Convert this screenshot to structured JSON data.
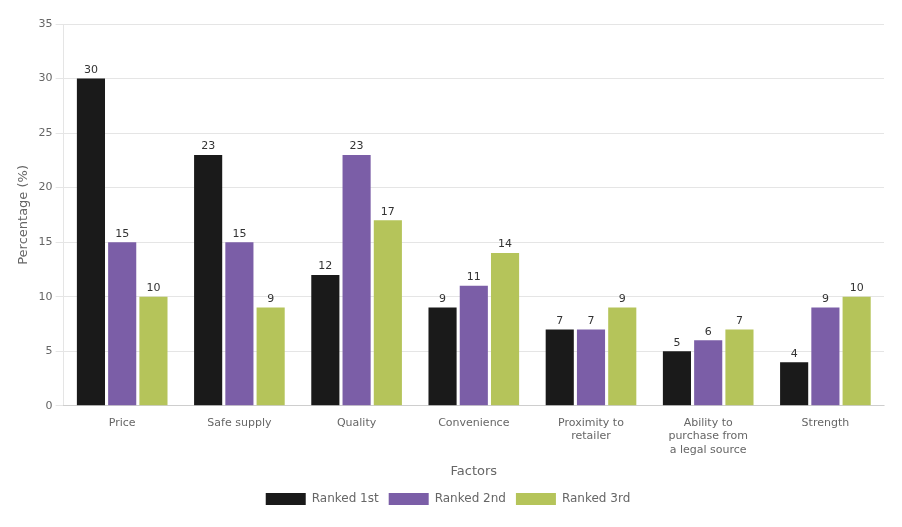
{
  "chart_data": {
    "type": "bar",
    "categories": [
      "Price",
      "Safe supply",
      "Quality",
      "Convenience",
      "Proximity to\nretailer",
      "Ability to\npurchase from\na legal source",
      "Strength"
    ],
    "series": [
      {
        "name": "Ranked 1st",
        "color": "#1a1a1a",
        "values": [
          30,
          23,
          12,
          9,
          7,
          5,
          4
        ]
      },
      {
        "name": "Ranked 2nd",
        "color": "#7b5ea7",
        "values": [
          15,
          15,
          23,
          11,
          7,
          6,
          9
        ]
      },
      {
        "name": "Ranked 3rd",
        "color": "#b5c45a",
        "values": [
          10,
          9,
          17,
          14,
          9,
          7,
          10
        ]
      }
    ],
    "xlabel": "Factors",
    "ylabel": "Percentage (%)",
    "ylim": [
      0,
      35
    ],
    "yticks": [
      0,
      5,
      10,
      15,
      20,
      25,
      30,
      35
    ],
    "grid": true,
    "legend": "bottom",
    "data_labels": true
  }
}
